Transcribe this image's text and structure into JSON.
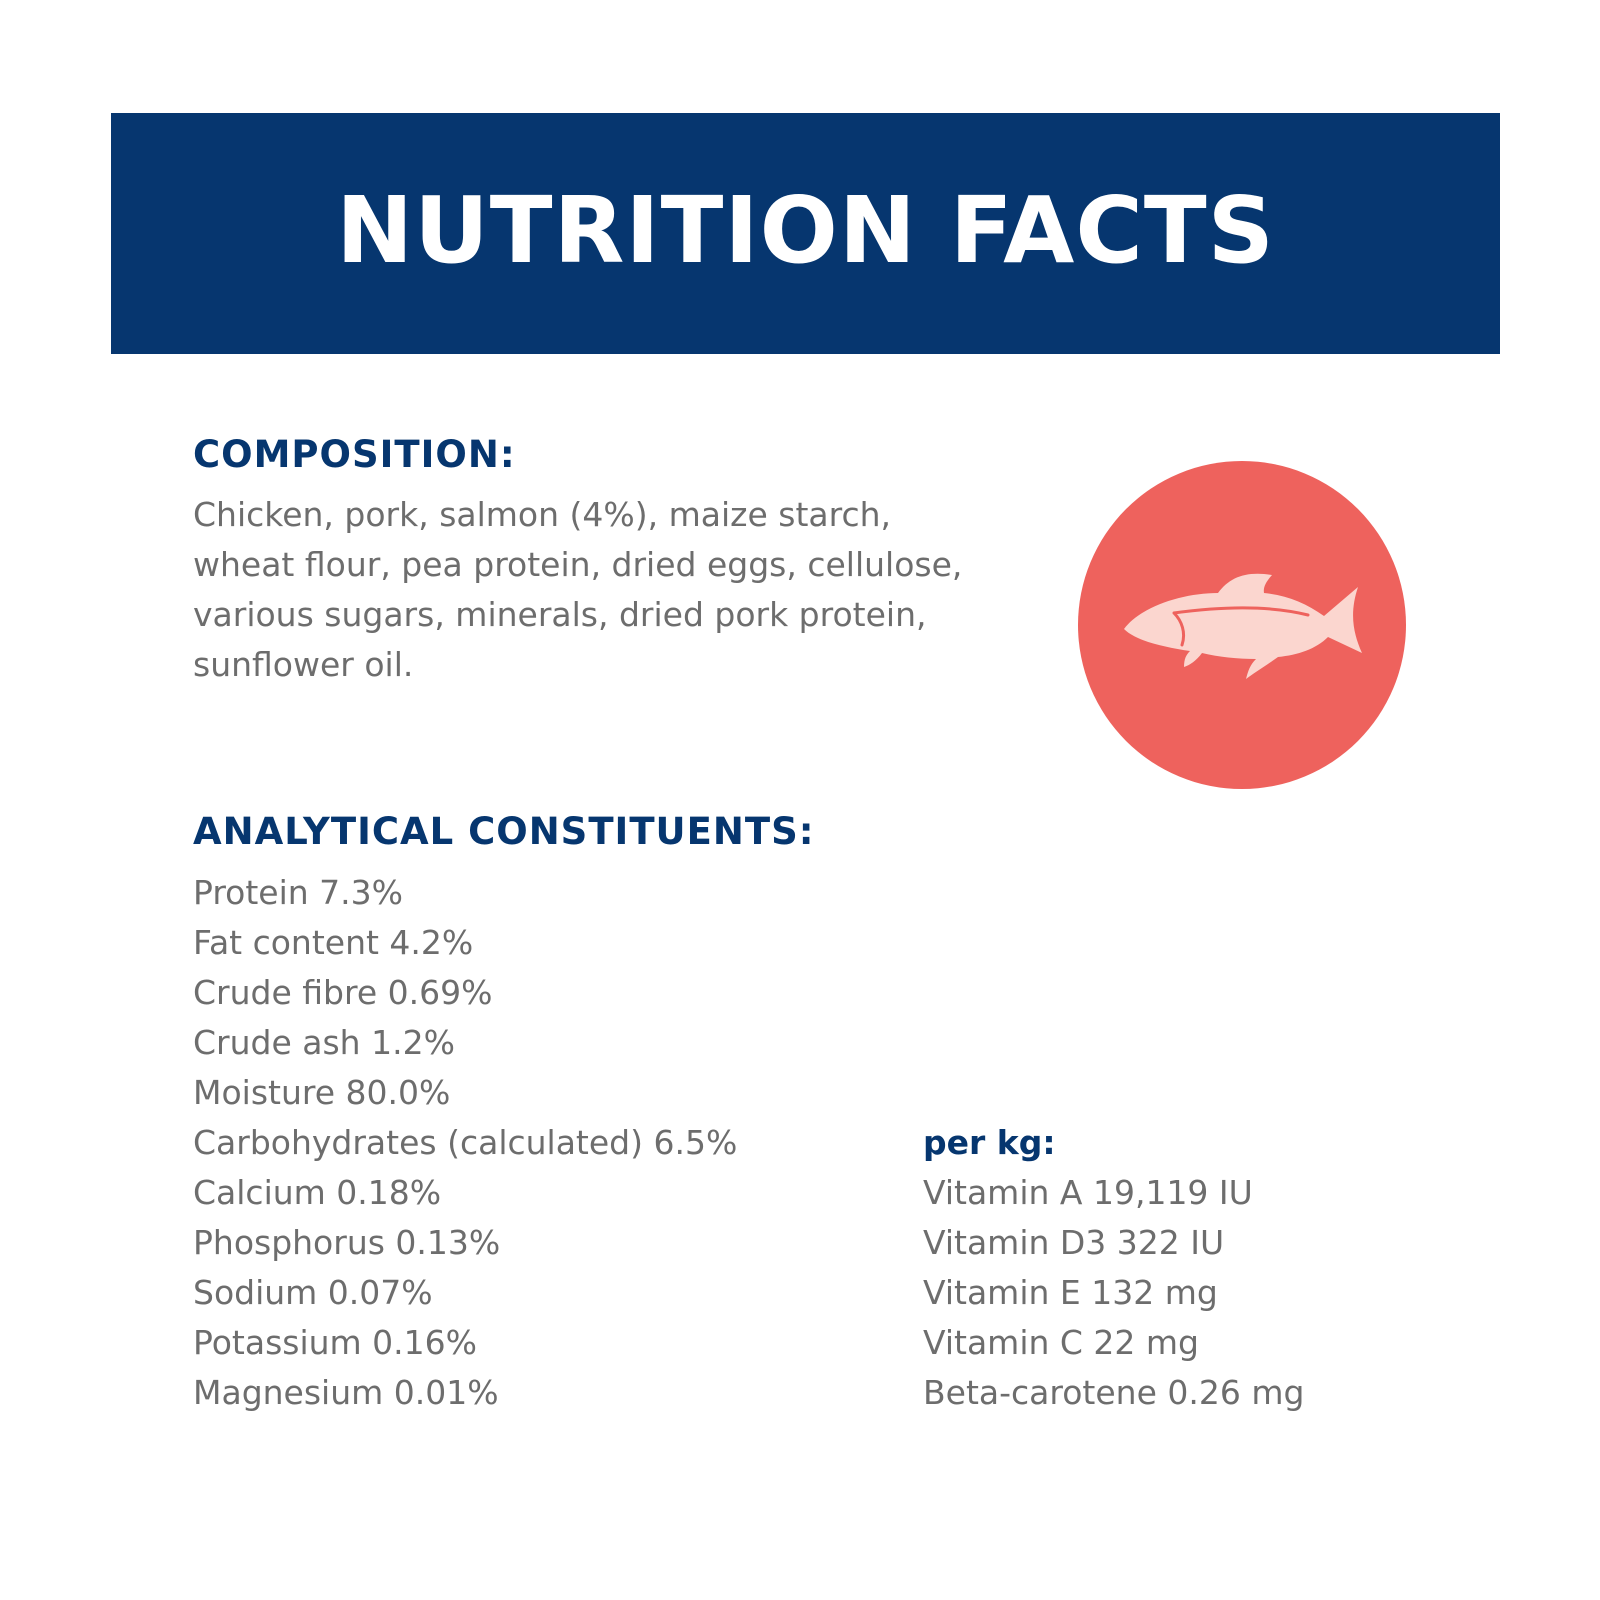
{
  "banner": {
    "title": "NUTRITION FACTS",
    "background": "#06366f"
  },
  "composition": {
    "heading": "COMPOSITION:",
    "lines": [
      "Chicken, pork, salmon (4%), maize starch,",
      "wheat flour, pea protein, dried eggs, cellulose,",
      "various sugars, minerals, dried pork protein,",
      "sunflower oil."
    ]
  },
  "badge": {
    "icon": "fish-icon",
    "circle_color": "#ee625d",
    "fish_color": "#fbd6cf"
  },
  "analytical": {
    "heading": "ANALYTICAL CONSTITUENTS:",
    "items": [
      "Protein 7.3%",
      "Fat content 4.2%",
      "Crude fibre 0.69%",
      "Crude ash 1.2%",
      "Moisture 80.0%",
      "Carbohydrates (calculated) 6.5%",
      "Calcium 0.18%",
      "Phosphorus 0.13%",
      "Sodium 0.07%",
      "Potassium 0.16%",
      "Magnesium 0.01%"
    ]
  },
  "per_kg": {
    "heading": "per kg:",
    "items": [
      "Vitamin A 19,119 IU",
      "Vitamin D3 322 IU",
      "Vitamin E 132 mg",
      "Vitamin C 22 mg",
      "Beta-carotene 0.26 mg"
    ]
  },
  "colors": {
    "heading": "#06366f",
    "body_text": "#6d6d6d"
  }
}
